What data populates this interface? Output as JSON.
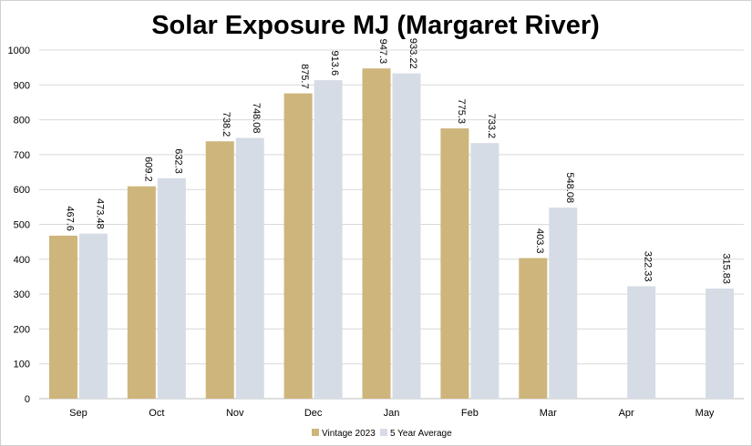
{
  "chart_data": {
    "type": "bar",
    "title": "Solar Exposure MJ (Margaret River)",
    "xlabel": "",
    "ylabel": "",
    "ylim": [
      0,
      1000
    ],
    "yticks": [
      "0",
      "100",
      "200",
      "300",
      "400",
      "500",
      "600",
      "700",
      "800",
      "900",
      "1000"
    ],
    "grid": true,
    "legend_position": "bottom",
    "categories": [
      "Sep",
      "Oct",
      "Nov",
      "Dec",
      "Jan",
      "Feb",
      "Mar",
      "Apr",
      "May"
    ],
    "series": [
      {
        "name": "Vintage 2023",
        "color": "#CDB57C",
        "values": [
          467.6,
          609.2,
          738.2,
          875.7,
          947.3,
          775.3,
          403.3,
          null,
          null
        ],
        "labels": [
          "467.6",
          "609.2",
          "738.2",
          "875.7",
          "947.3",
          "775.3",
          "403.3",
          null,
          null
        ]
      },
      {
        "name": "5 Year Average",
        "color": "#D6DCE5",
        "values": [
          473.48,
          632.3,
          748.08,
          913.6,
          933.22,
          733.2,
          548.08,
          322.33,
          315.83
        ],
        "labels": [
          "473.48",
          "632.3",
          "748.08",
          "913.6",
          "933.22",
          "733.2",
          "548.08",
          "322.33",
          "315.83"
        ]
      }
    ]
  },
  "colors": {
    "gridline": "#D9D9D9",
    "axis": "#BFBFBF"
  }
}
